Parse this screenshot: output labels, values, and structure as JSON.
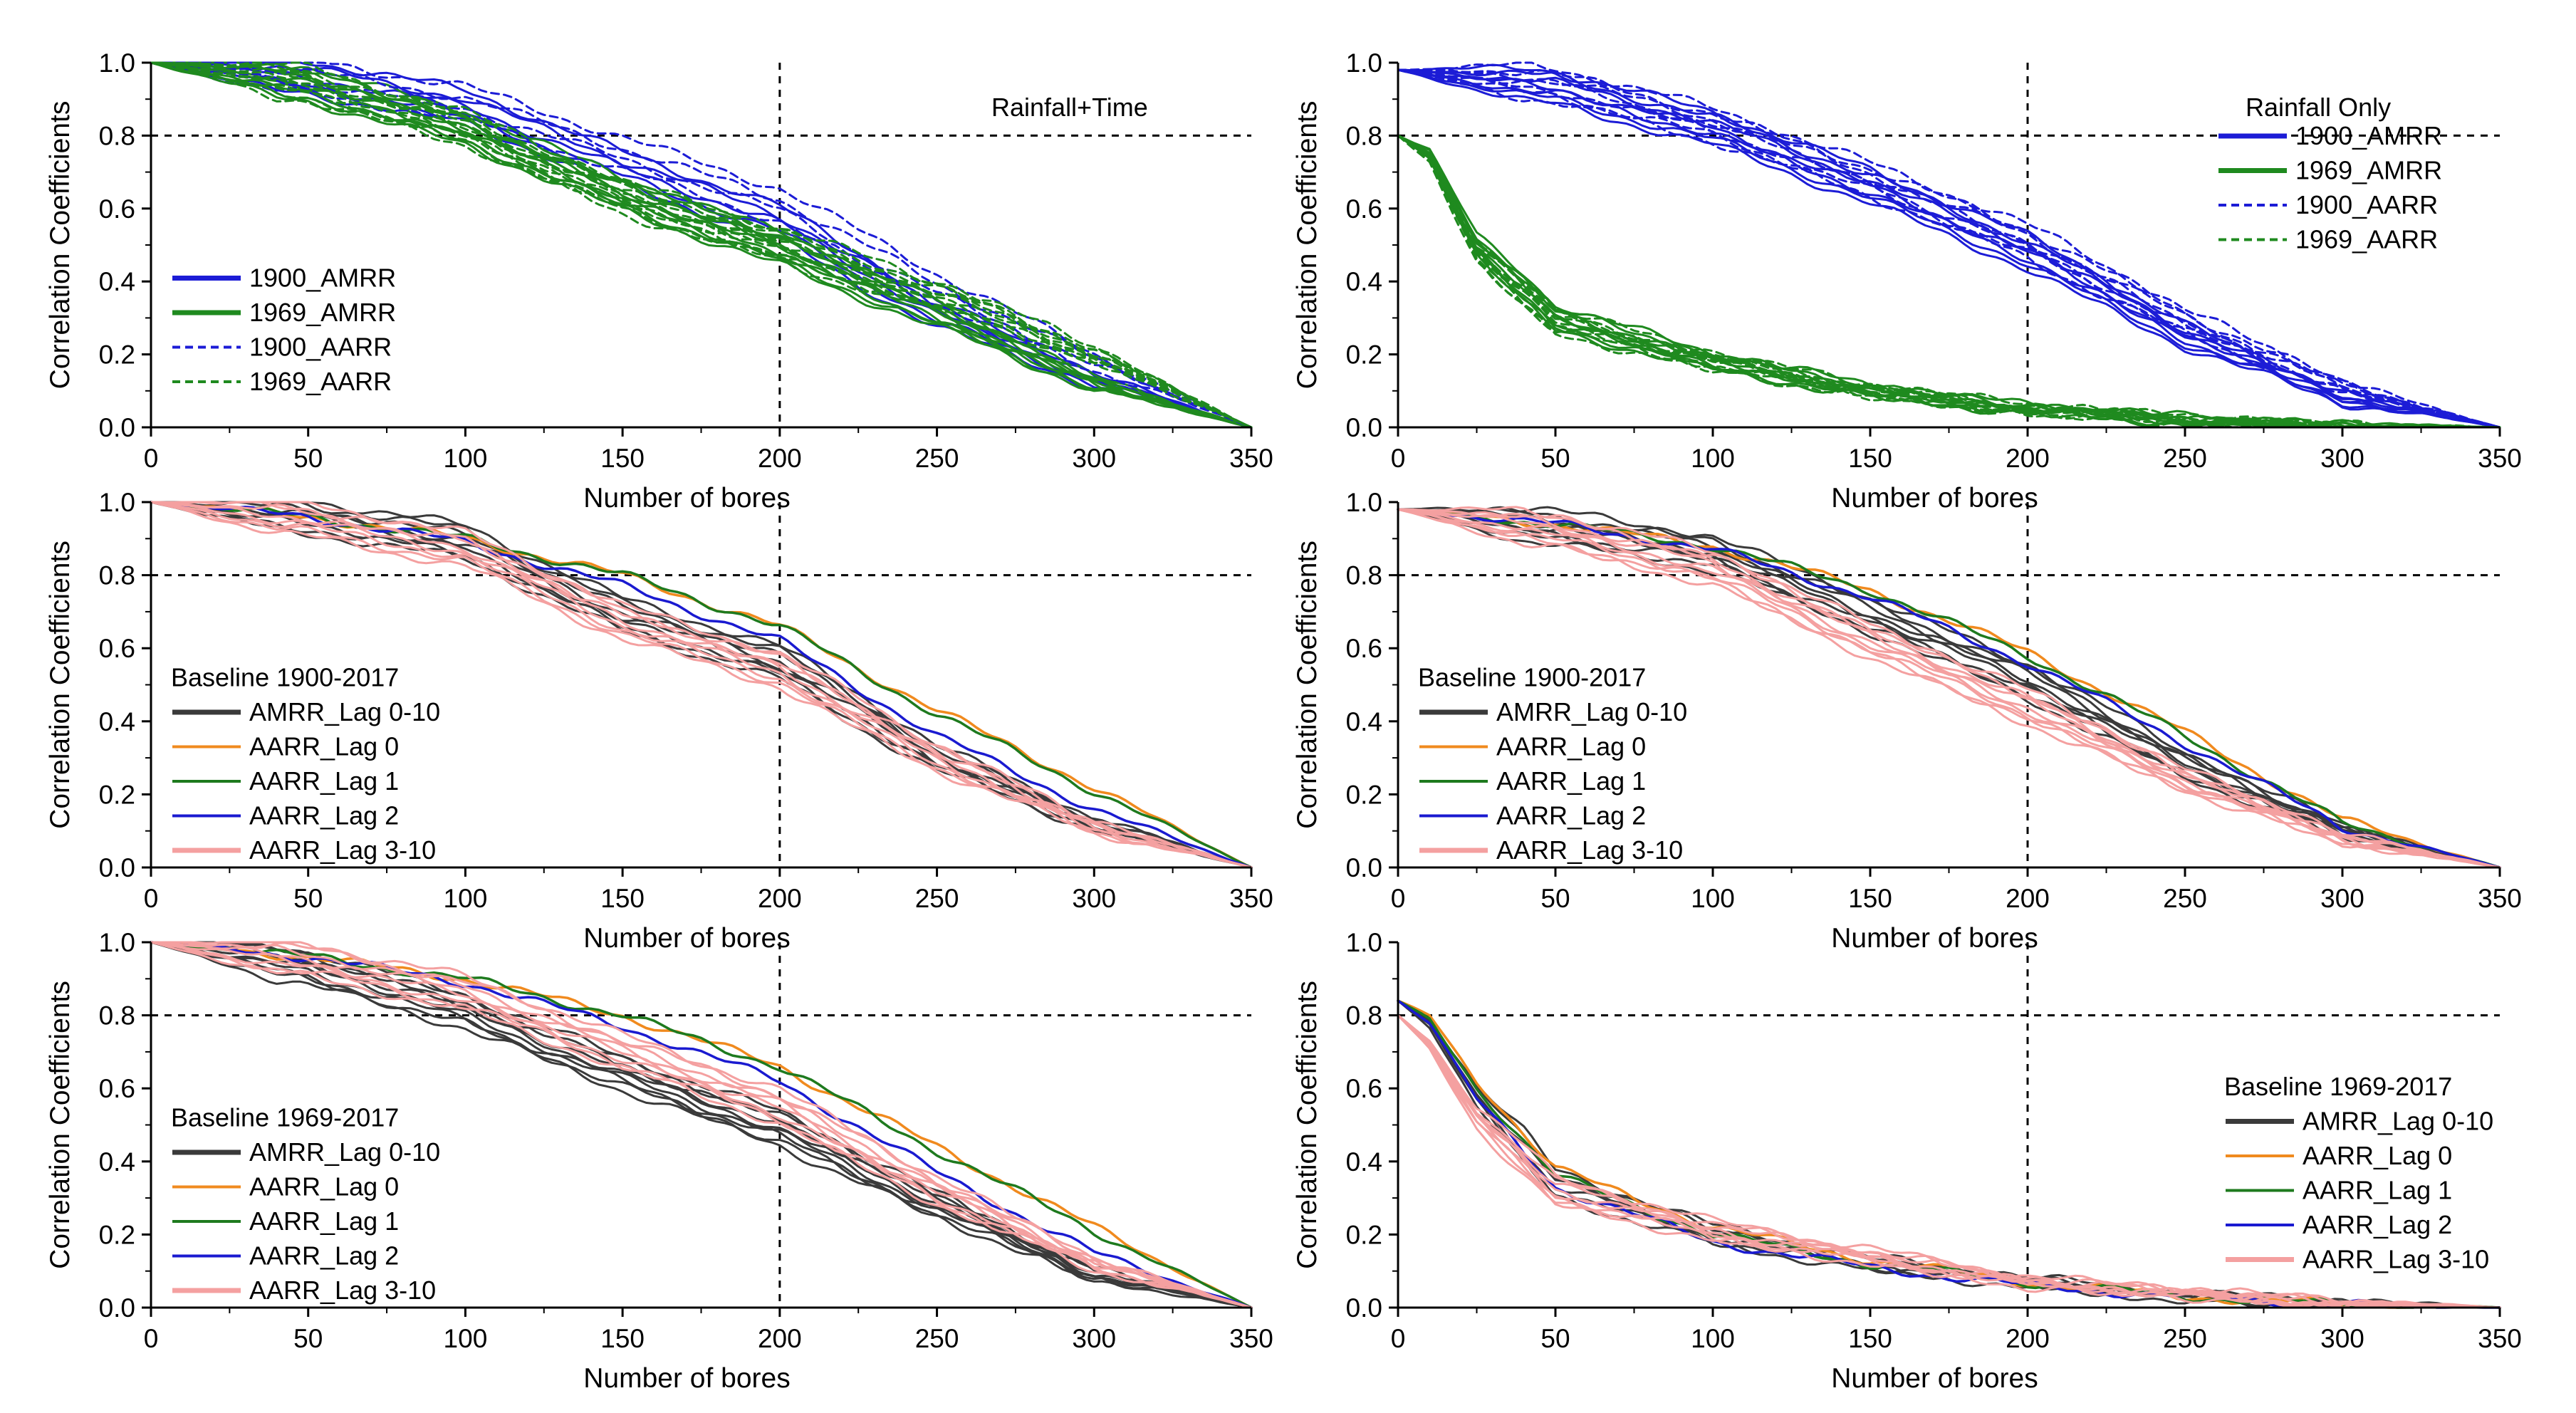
{
  "colors": {
    "blue": "#1c1cd6",
    "green": "#1f8a1f",
    "dark": "#3a3a3a",
    "orange": "#f08a1e",
    "darkgreen": "#1e7a1e",
    "navy": "#1a1ad0",
    "pink": "#f4a0a0"
  },
  "chart_data": [
    {
      "id": "p1",
      "type": "line",
      "title": "Rainfall+Time",
      "xlabel": "Number of bores",
      "ylabel": "Correlation Coefficients",
      "xlim": [
        0,
        350
      ],
      "ylim": [
        0,
        1.0
      ],
      "xticks": [
        "0",
        "50",
        "100",
        "150",
        "200",
        "250",
        "300",
        "350"
      ],
      "yticks": [
        "0.0",
        "0.2",
        "0.4",
        "0.6",
        "0.8",
        "1.0"
      ],
      "reference_lines": {
        "y": 0.8,
        "x": 200
      },
      "legend_title": "",
      "legend_position": "left-bottom",
      "series": [
        {
          "name": "1900_AMRR",
          "color_key": "blue",
          "dashed": false,
          "copies": 5,
          "x": [
            0,
            50,
            100,
            150,
            200,
            250,
            300,
            350
          ],
          "values": [
            1.0,
            0.96,
            0.88,
            0.71,
            0.56,
            0.31,
            0.13,
            0.0
          ]
        },
        {
          "name": "1969_AMRR",
          "color_key": "green",
          "dashed": false,
          "copies": 9,
          "x": [
            0,
            50,
            100,
            150,
            200,
            250,
            300,
            350
          ],
          "values": [
            1.0,
            0.94,
            0.82,
            0.64,
            0.49,
            0.31,
            0.12,
            0.0
          ]
        },
        {
          "name": "1900_AARR",
          "color_key": "blue",
          "dashed": true,
          "copies": 4,
          "x": [
            0,
            50,
            100,
            150,
            200,
            250,
            300,
            350
          ],
          "values": [
            1.0,
            0.96,
            0.89,
            0.75,
            0.61,
            0.38,
            0.18,
            0.0
          ]
        },
        {
          "name": "1969_AARR",
          "color_key": "green",
          "dashed": true,
          "copies": 10,
          "x": [
            0,
            50,
            100,
            150,
            200,
            250,
            300,
            350
          ],
          "values": [
            1.0,
            0.94,
            0.82,
            0.63,
            0.5,
            0.36,
            0.2,
            0.0
          ]
        }
      ]
    },
    {
      "id": "p2",
      "type": "line",
      "title": "Rainfall Only",
      "xlabel": "Number of bores",
      "ylabel": "Correlation Coefficients",
      "xlim": [
        0,
        350
      ],
      "ylim": [
        0,
        1.0
      ],
      "xticks": [
        "0",
        "50",
        "100",
        "150",
        "200",
        "250",
        "300",
        "350"
      ],
      "yticks": [
        "0.0",
        "0.2",
        "0.4",
        "0.6",
        "0.8",
        "1.0"
      ],
      "reference_lines": {
        "y": 0.8,
        "x": 200
      },
      "legend_title": "",
      "legend_position": "top-right",
      "series": [
        {
          "name": "1900_AMRR",
          "color_key": "blue",
          "dashed": false,
          "copies": 7,
          "x": [
            0,
            50,
            100,
            150,
            200,
            250,
            300,
            350
          ],
          "values": [
            0.98,
            0.93,
            0.82,
            0.66,
            0.48,
            0.25,
            0.08,
            0.0
          ]
        },
        {
          "name": "1969_AMRR",
          "color_key": "green",
          "dashed": false,
          "copies": 8,
          "x": [
            0,
            10,
            25,
            50,
            100,
            150,
            200,
            250,
            300,
            350
          ],
          "values": [
            0.8,
            0.75,
            0.5,
            0.3,
            0.18,
            0.1,
            0.05,
            0.02,
            0.0,
            0.0
          ]
        },
        {
          "name": "1900_AARR",
          "color_key": "blue",
          "dashed": true,
          "copies": 7,
          "x": [
            0,
            50,
            100,
            150,
            200,
            250,
            300,
            350
          ],
          "values": [
            0.98,
            0.94,
            0.83,
            0.68,
            0.51,
            0.29,
            0.11,
            0.0
          ]
        },
        {
          "name": "1969_AARR",
          "color_key": "green",
          "dashed": true,
          "copies": 8,
          "x": [
            0,
            10,
            25,
            50,
            100,
            150,
            200,
            250,
            300,
            350
          ],
          "values": [
            0.8,
            0.74,
            0.48,
            0.29,
            0.18,
            0.1,
            0.05,
            0.02,
            0.0,
            0.0
          ]
        }
      ]
    },
    {
      "id": "p3",
      "type": "line",
      "title": "",
      "xlabel": "Number of bores",
      "ylabel": "Correlation Coefficients",
      "xlim": [
        0,
        350
      ],
      "ylim": [
        0,
        1.0
      ],
      "xticks": [
        "0",
        "50",
        "100",
        "150",
        "200",
        "250",
        "300",
        "350"
      ],
      "yticks": [
        "0.0",
        "0.2",
        "0.4",
        "0.6",
        "0.8",
        "1.0"
      ],
      "reference_lines": {
        "y": 0.8,
        "x": 200
      },
      "legend_title": "Baseline 1900-2017",
      "legend_position": "left-bottom",
      "series": [
        {
          "name": "AMRR_Lag 0-10",
          "color_key": "dark",
          "dashed": false,
          "copies": 8,
          "x": [
            0,
            50,
            100,
            150,
            200,
            250,
            300,
            350
          ],
          "values": [
            1.0,
            0.96,
            0.89,
            0.69,
            0.56,
            0.3,
            0.12,
            0.0
          ]
        },
        {
          "name": "AARR_Lag 0",
          "color_key": "orange",
          "dashed": false,
          "copies": 1,
          "x": [
            0,
            50,
            100,
            150,
            200,
            250,
            300,
            350
          ],
          "values": [
            1.0,
            0.96,
            0.9,
            0.8,
            0.66,
            0.43,
            0.22,
            0.0
          ]
        },
        {
          "name": "AARR_Lag 1",
          "color_key": "darkgreen",
          "dashed": false,
          "copies": 1,
          "x": [
            0,
            50,
            100,
            150,
            200,
            250,
            300,
            350
          ],
          "values": [
            1.0,
            0.96,
            0.9,
            0.8,
            0.66,
            0.42,
            0.21,
            0.0
          ]
        },
        {
          "name": "AARR_Lag 2",
          "color_key": "navy",
          "dashed": false,
          "copies": 1,
          "x": [
            0,
            50,
            100,
            150,
            200,
            250,
            300,
            350
          ],
          "values": [
            1.0,
            0.96,
            0.89,
            0.77,
            0.62,
            0.36,
            0.16,
            0.0
          ]
        },
        {
          "name": "AARR_Lag 3-10",
          "color_key": "pink",
          "dashed": false,
          "copies": 8,
          "x": [
            0,
            50,
            100,
            150,
            200,
            250,
            300,
            350
          ],
          "values": [
            1.0,
            0.95,
            0.87,
            0.67,
            0.54,
            0.3,
            0.11,
            0.0
          ]
        }
      ]
    },
    {
      "id": "p4",
      "type": "line",
      "title": "",
      "xlabel": "Number of bores",
      "ylabel": "Correlation Coefficients",
      "xlim": [
        0,
        350
      ],
      "ylim": [
        0,
        1.0
      ],
      "xticks": [
        "0",
        "50",
        "100",
        "150",
        "200",
        "250",
        "300",
        "350"
      ],
      "yticks": [
        "0.0",
        "0.2",
        "0.4",
        "0.6",
        "0.8",
        "1.0"
      ],
      "reference_lines": {
        "y": 0.8,
        "x": 200
      },
      "legend_title": "Baseline 1900-2017",
      "legend_position": "left-bottom",
      "series": [
        {
          "name": "AMRR_Lag 0-10",
          "color_key": "dark",
          "dashed": false,
          "copies": 8,
          "x": [
            0,
            50,
            100,
            150,
            200,
            250,
            300,
            350
          ],
          "values": [
            0.98,
            0.93,
            0.86,
            0.69,
            0.51,
            0.28,
            0.1,
            0.0
          ]
        },
        {
          "name": "AARR_Lag 0",
          "color_key": "orange",
          "dashed": false,
          "copies": 1,
          "x": [
            0,
            50,
            100,
            150,
            200,
            250,
            300,
            350
          ],
          "values": [
            0.98,
            0.94,
            0.88,
            0.76,
            0.59,
            0.37,
            0.13,
            0.0
          ]
        },
        {
          "name": "AARR_Lag 1",
          "color_key": "darkgreen",
          "dashed": false,
          "copies": 1,
          "x": [
            0,
            50,
            100,
            150,
            200,
            250,
            300,
            350
          ],
          "values": [
            0.98,
            0.94,
            0.88,
            0.76,
            0.58,
            0.36,
            0.12,
            0.0
          ]
        },
        {
          "name": "AARR_Lag 2",
          "color_key": "navy",
          "dashed": false,
          "copies": 1,
          "x": [
            0,
            50,
            100,
            150,
            200,
            250,
            300,
            350
          ],
          "values": [
            0.98,
            0.94,
            0.87,
            0.74,
            0.56,
            0.34,
            0.11,
            0.0
          ]
        },
        {
          "name": "AARR_Lag 3-10",
          "color_key": "pink",
          "dashed": false,
          "copies": 9,
          "x": [
            0,
            50,
            100,
            150,
            200,
            250,
            300,
            350
          ],
          "values": [
            0.98,
            0.92,
            0.82,
            0.62,
            0.44,
            0.24,
            0.08,
            0.0
          ]
        }
      ]
    },
    {
      "id": "p5",
      "type": "line",
      "title": "",
      "xlabel": "Number of bores",
      "ylabel": "Correlation Coefficients",
      "xlim": [
        0,
        350
      ],
      "ylim": [
        0,
        1.0
      ],
      "xticks": [
        "0",
        "50",
        "100",
        "150",
        "200",
        "250",
        "300",
        "350"
      ],
      "yticks": [
        "0.0",
        "0.2",
        "0.4",
        "0.6",
        "0.8",
        "1.0"
      ],
      "reference_lines": {
        "y": 0.8,
        "x": 200
      },
      "legend_title": "Baseline 1969-2017",
      "legend_position": "left-bottom",
      "series": [
        {
          "name": "AMRR_Lag 0-10",
          "color_key": "dark",
          "dashed": false,
          "copies": 9,
          "x": [
            0,
            50,
            100,
            150,
            200,
            250,
            300,
            350
          ],
          "values": [
            1.0,
            0.93,
            0.81,
            0.64,
            0.49,
            0.28,
            0.09,
            0.0
          ]
        },
        {
          "name": "AARR_Lag 0",
          "color_key": "orange",
          "dashed": false,
          "copies": 1,
          "x": [
            0,
            50,
            100,
            150,
            200,
            250,
            300,
            350
          ],
          "values": [
            1.0,
            0.96,
            0.9,
            0.8,
            0.66,
            0.44,
            0.22,
            0.0
          ]
        },
        {
          "name": "AARR_Lag 1",
          "color_key": "darkgreen",
          "dashed": false,
          "copies": 1,
          "x": [
            0,
            50,
            100,
            150,
            200,
            250,
            300,
            350
          ],
          "values": [
            1.0,
            0.96,
            0.9,
            0.8,
            0.66,
            0.43,
            0.21,
            0.0
          ]
        },
        {
          "name": "AARR_Lag 2",
          "color_key": "navy",
          "dashed": false,
          "copies": 1,
          "x": [
            0,
            50,
            100,
            150,
            200,
            250,
            300,
            350
          ],
          "values": [
            1.0,
            0.96,
            0.89,
            0.77,
            0.62,
            0.37,
            0.15,
            0.0
          ]
        },
        {
          "name": "AARR_Lag 3-10",
          "color_key": "pink",
          "dashed": false,
          "copies": 8,
          "x": [
            0,
            50,
            100,
            150,
            200,
            250,
            300,
            350
          ],
          "values": [
            1.0,
            0.95,
            0.86,
            0.7,
            0.55,
            0.32,
            0.12,
            0.0
          ]
        }
      ]
    },
    {
      "id": "p6",
      "type": "line",
      "title": "",
      "xlabel": "Number of bores",
      "ylabel": "Correlation Coefficients",
      "xlim": [
        0,
        350
      ],
      "ylim": [
        0,
        1.0
      ],
      "xticks": [
        "0",
        "50",
        "100",
        "150",
        "200",
        "250",
        "300",
        "350"
      ],
      "yticks": [
        "0.0",
        "0.2",
        "0.4",
        "0.6",
        "0.8",
        "1.0"
      ],
      "reference_lines": {
        "y": 0.8,
        "x": 200
      },
      "legend_title": "Baseline 1969-2017",
      "legend_position": "right-bottom",
      "series": [
        {
          "name": "AMRR_Lag 0-10",
          "color_key": "dark",
          "dashed": false,
          "copies": 6,
          "x": [
            0,
            10,
            25,
            50,
            100,
            150,
            200,
            250,
            300,
            350
          ],
          "values": [
            0.84,
            0.78,
            0.58,
            0.34,
            0.2,
            0.12,
            0.07,
            0.03,
            0.01,
            0.0
          ]
        },
        {
          "name": "AARR_Lag 0",
          "color_key": "orange",
          "dashed": false,
          "copies": 1,
          "x": [
            0,
            10,
            25,
            50,
            100,
            150,
            200,
            250,
            300,
            350
          ],
          "values": [
            0.84,
            0.8,
            0.62,
            0.38,
            0.22,
            0.13,
            0.07,
            0.03,
            0.01,
            0.0
          ]
        },
        {
          "name": "AARR_Lag 1",
          "color_key": "darkgreen",
          "dashed": false,
          "copies": 1,
          "x": [
            0,
            10,
            25,
            50,
            100,
            150,
            200,
            250,
            300,
            350
          ],
          "values": [
            0.84,
            0.79,
            0.6,
            0.36,
            0.2,
            0.12,
            0.07,
            0.03,
            0.01,
            0.0
          ]
        },
        {
          "name": "AARR_Lag 2",
          "color_key": "navy",
          "dashed": false,
          "copies": 1,
          "x": [
            0,
            10,
            25,
            50,
            100,
            150,
            200,
            250,
            300,
            350
          ],
          "values": [
            0.84,
            0.78,
            0.57,
            0.33,
            0.18,
            0.11,
            0.06,
            0.03,
            0.01,
            0.0
          ]
        },
        {
          "name": "AARR_Lag 3-10",
          "color_key": "pink",
          "dashed": false,
          "copies": 8,
          "x": [
            0,
            10,
            25,
            50,
            100,
            150,
            200,
            250,
            300,
            350
          ],
          "values": [
            0.8,
            0.72,
            0.52,
            0.32,
            0.21,
            0.14,
            0.07,
            0.04,
            0.01,
            0.0
          ]
        }
      ]
    }
  ]
}
